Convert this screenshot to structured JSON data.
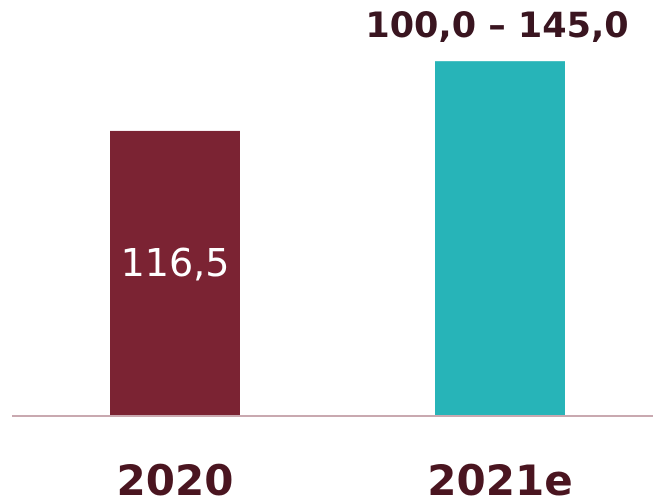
{
  "chart_data": {
    "type": "bar",
    "title": "",
    "xlabel": "",
    "ylabel": "",
    "categories": [
      "2020",
      "2021e"
    ],
    "values": [
      116.5,
      145.0
    ],
    "value_labels": [
      "116,5",
      "100,0 – 145,0"
    ],
    "range_2021e": [
      100.0,
      145.0
    ],
    "bar_colors": [
      "#7b2333",
      "#27b4b8"
    ],
    "label_colors": [
      "#ffffff",
      "#3a1520"
    ],
    "label_position": [
      "inside",
      "above"
    ],
    "baseline_color": "#c9a9b0",
    "tick_label_color": "#4a1520",
    "grid": false,
    "legend": "none",
    "ylim": [
      0,
      170
    ]
  }
}
